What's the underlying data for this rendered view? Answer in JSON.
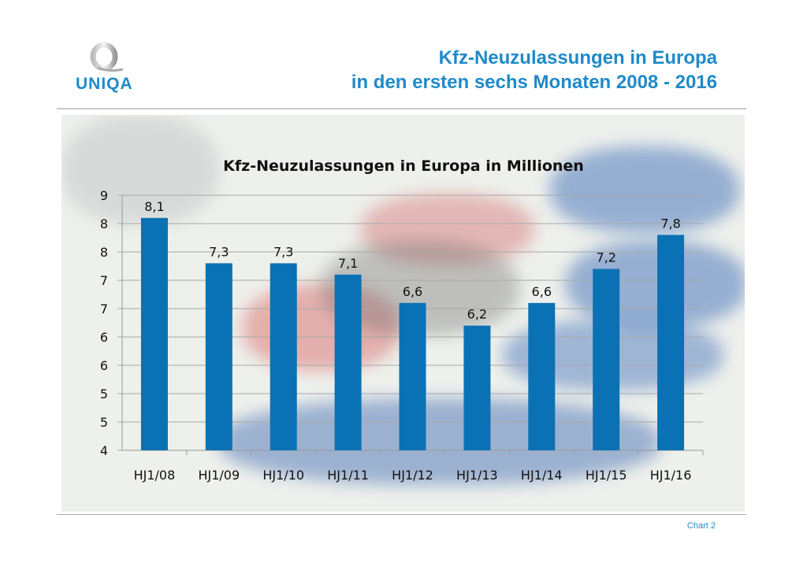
{
  "header": {
    "logo_text": "UNIQA",
    "title_line1": "Kfz-Neuzulassungen in Europa",
    "title_line2": "in den ersten sechs Monaten 2008 - 2016"
  },
  "footer": {
    "label": "Chart 2"
  },
  "colors": {
    "bar": "#0a72b4",
    "title": "#1f8ac8"
  },
  "chart_data": {
    "type": "bar",
    "title": "Kfz-Neuzulassungen in Europa in Millionen",
    "categories": [
      "HJ1/08",
      "HJ1/09",
      "HJ1/10",
      "HJ1/11",
      "HJ1/12",
      "HJ1/13",
      "HJ1/14",
      "HJ1/15",
      "HJ1/16"
    ],
    "values": [
      8.1,
      7.3,
      7.3,
      7.1,
      6.6,
      6.2,
      6.6,
      7.2,
      7.8
    ],
    "data_labels": [
      "8,1",
      "7,3",
      "7,3",
      "7,1",
      "6,6",
      "6,2",
      "6,6",
      "7,2",
      "7,8"
    ],
    "ylim": [
      4,
      8.5
    ],
    "yticks": [
      4,
      4.5,
      5,
      5.5,
      6,
      6.5,
      7,
      7.5,
      8,
      8.5
    ],
    "ytick_labels": [
      "4",
      "5",
      "5",
      "6",
      "6",
      "7",
      "7",
      "8",
      "8",
      "9"
    ],
    "xlabel": "",
    "ylabel": "",
    "grid": true,
    "legend": "none"
  }
}
